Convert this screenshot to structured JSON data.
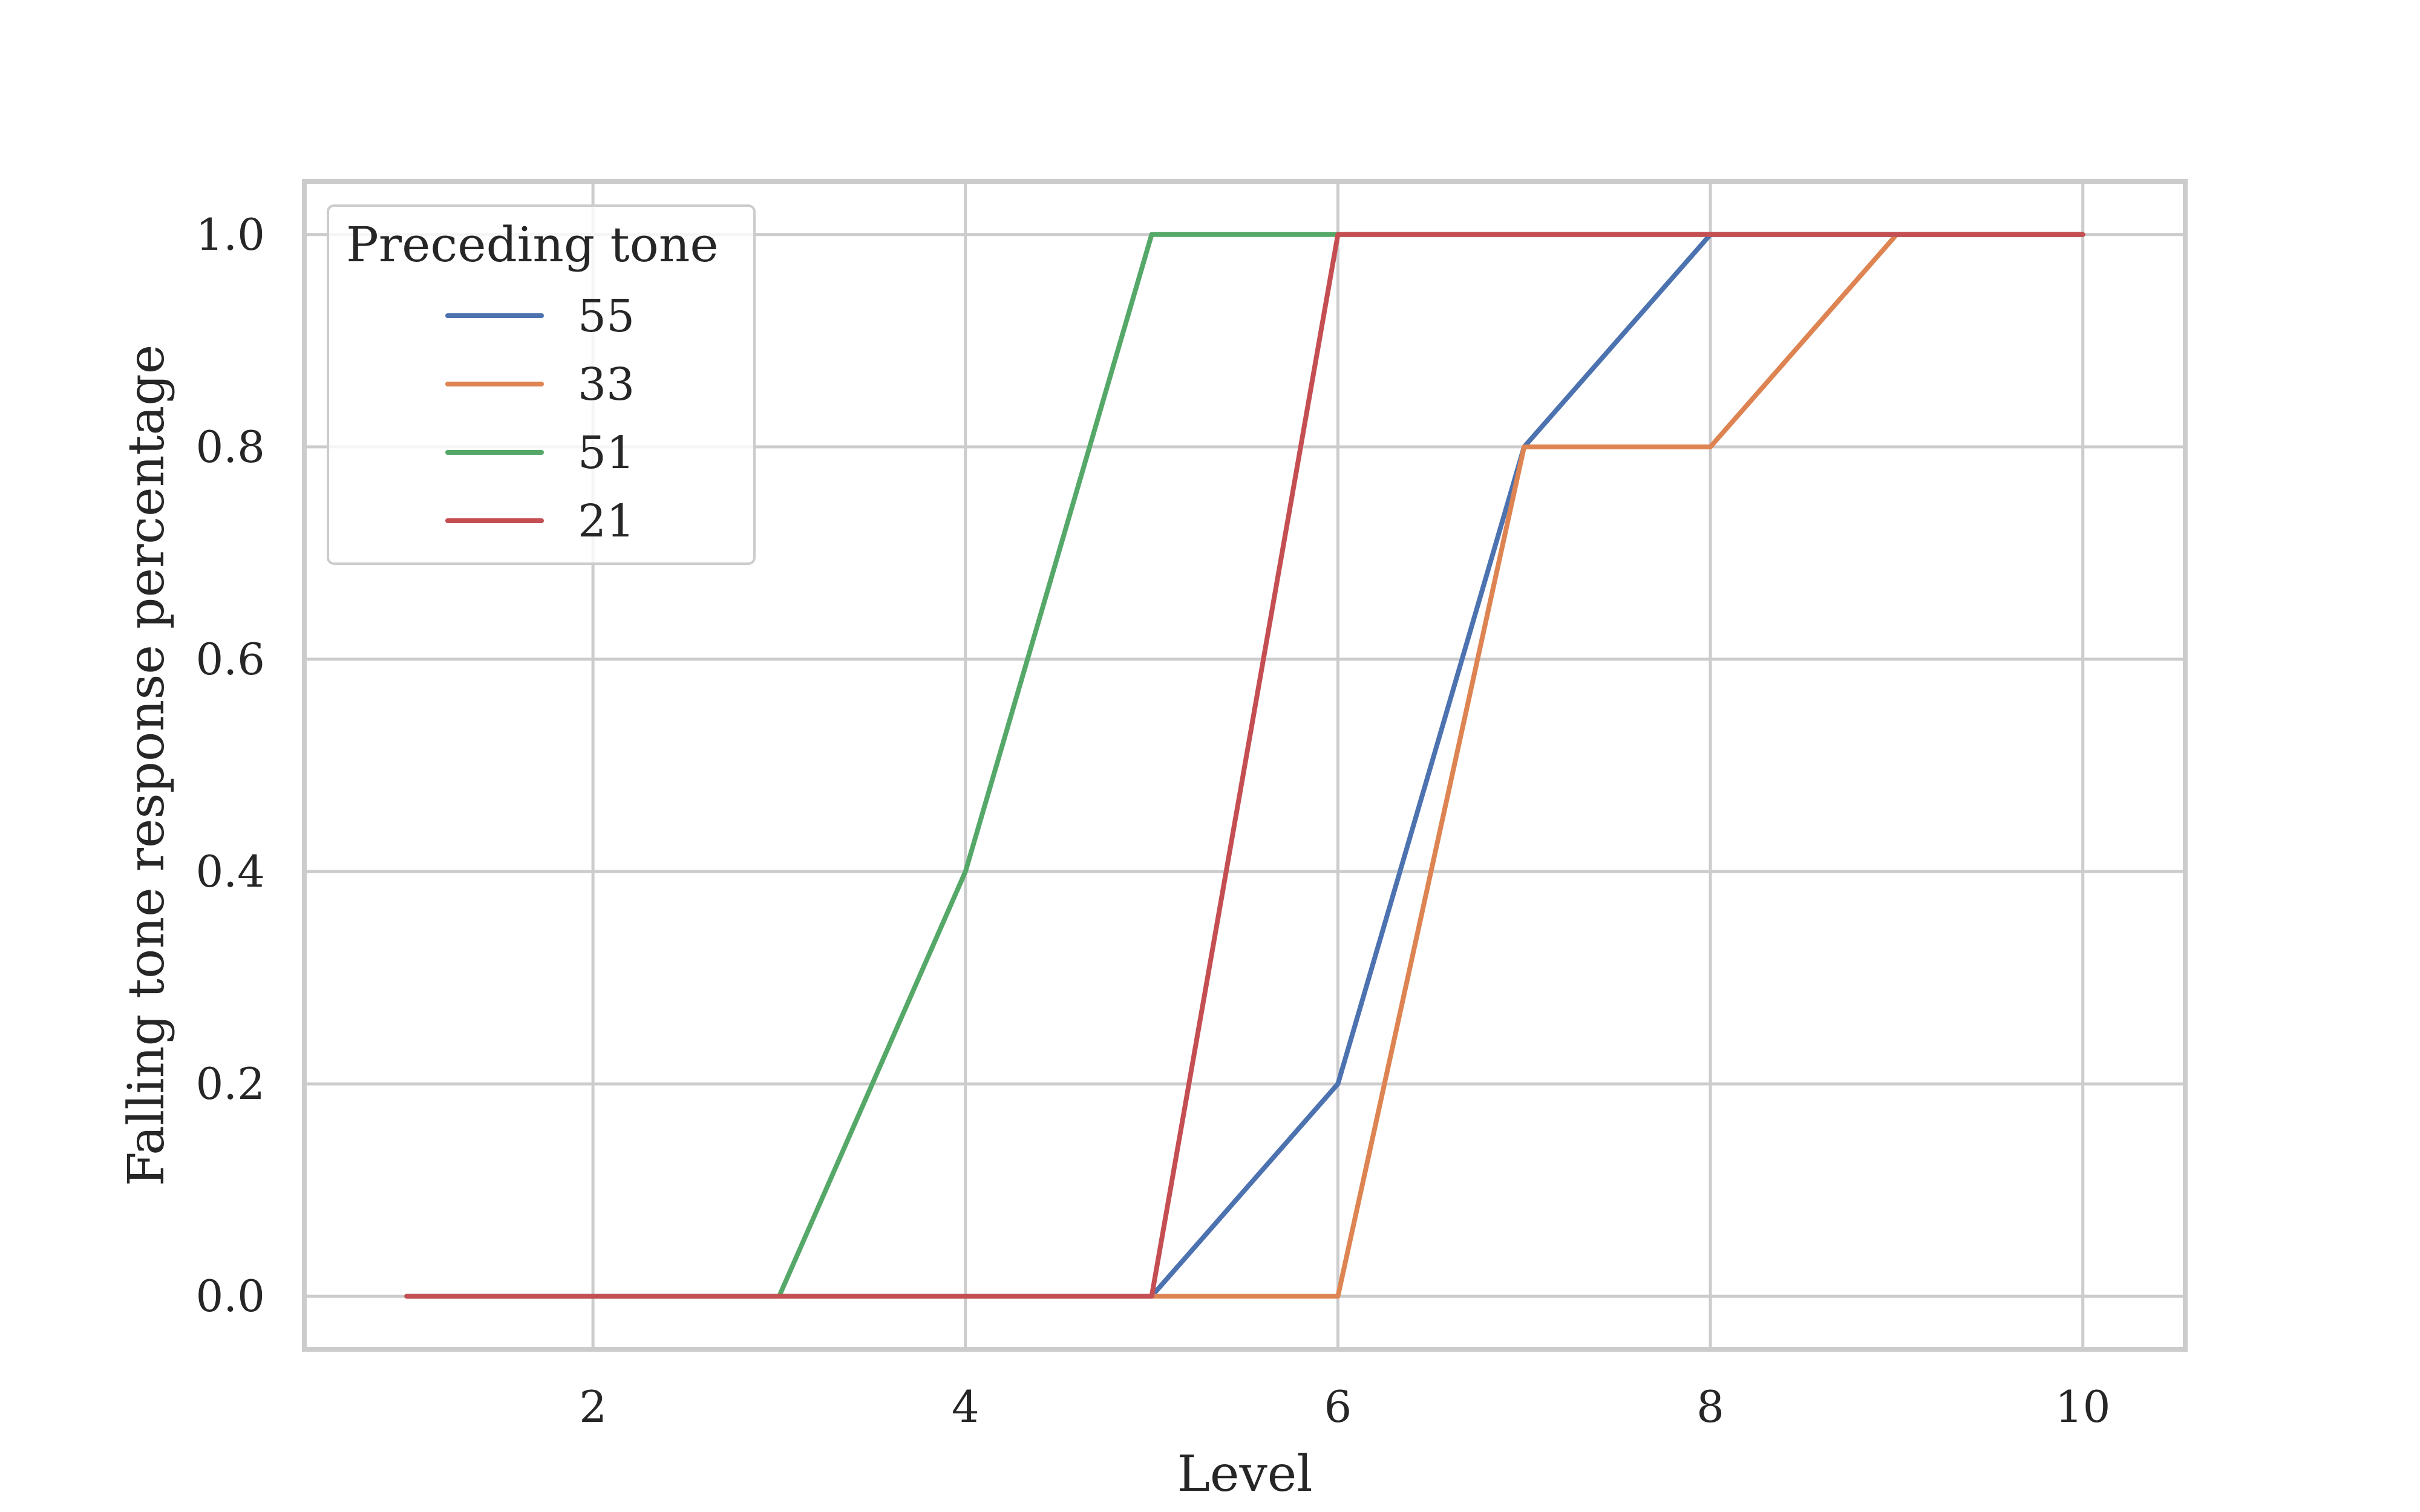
{
  "chart_data": {
    "type": "line",
    "xlabel": "Level",
    "ylabel": "Falling tone response percentage",
    "xlim": [
      0.45,
      10.55
    ],
    "ylim": [
      -0.05,
      1.05
    ],
    "xticks": [
      2,
      4,
      6,
      8,
      10
    ],
    "yticks": [
      0.0,
      0.2,
      0.4,
      0.6,
      0.8,
      1.0
    ],
    "xtick_labels": [
      "2",
      "4",
      "6",
      "8",
      "10"
    ],
    "ytick_labels": [
      "0.0",
      "0.2",
      "0.4",
      "0.6",
      "0.8",
      "1.0"
    ],
    "grid": true,
    "legend": {
      "title": "Preceding tone",
      "placement": "top-left"
    },
    "x": [
      1,
      2,
      3,
      4,
      5,
      6,
      7,
      8,
      9,
      10
    ],
    "series": [
      {
        "name": "55",
        "color": "#4c72b0",
        "values": [
          0,
          0,
          0,
          0,
          0,
          0.2,
          0.8,
          1.0,
          1.0,
          1.0
        ]
      },
      {
        "name": "33",
        "color": "#dd8452",
        "values": [
          0,
          0,
          0,
          0,
          0,
          0,
          0.8,
          0.8,
          1.0,
          1.0
        ]
      },
      {
        "name": "51",
        "color": "#55a868",
        "values": [
          0,
          0,
          0,
          0.4,
          1.0,
          1.0,
          1.0,
          1.0,
          1.0,
          1.0
        ]
      },
      {
        "name": "21",
        "color": "#c44e52",
        "values": [
          0,
          0,
          0,
          0,
          0,
          1.0,
          1.0,
          1.0,
          1.0,
          1.0
        ]
      }
    ]
  }
}
